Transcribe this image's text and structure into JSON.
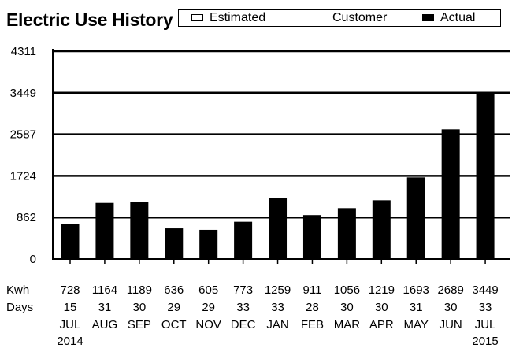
{
  "chart_data": {
    "type": "bar",
    "title": "Electric Use History",
    "legend": {
      "placement": "top-right",
      "items": [
        {
          "label": "Estimated",
          "style": "hollow"
        },
        {
          "label": "Customer",
          "style": "none"
        },
        {
          "label": "Actual",
          "style": "filled"
        }
      ]
    },
    "y_ticks": [
      "4311",
      "3449",
      "2587",
      "1724",
      "862",
      "0"
    ],
    "ylim": [
      0,
      4311
    ],
    "grid": true,
    "row_labels": {
      "kwh": "Kwh",
      "days": "Days"
    },
    "categories": [
      {
        "month": "JUL",
        "year": "2014"
      },
      {
        "month": "AUG",
        "year": ""
      },
      {
        "month": "SEP",
        "year": ""
      },
      {
        "month": "OCT",
        "year": ""
      },
      {
        "month": "NOV",
        "year": ""
      },
      {
        "month": "DEC",
        "year": ""
      },
      {
        "month": "JAN",
        "year": ""
      },
      {
        "month": "FEB",
        "year": ""
      },
      {
        "month": "MAR",
        "year": ""
      },
      {
        "month": "APR",
        "year": ""
      },
      {
        "month": "MAY",
        "year": ""
      },
      {
        "month": "JUN",
        "year": ""
      },
      {
        "month": "JUL",
        "year": "2015"
      }
    ],
    "series": [
      {
        "name": "Kwh",
        "values": [
          728,
          1164,
          1189,
          636,
          605,
          773,
          1259,
          911,
          1056,
          1219,
          1693,
          2689,
          3449
        ]
      },
      {
        "name": "Days",
        "values": [
          15,
          31,
          30,
          29,
          29,
          33,
          33,
          28,
          30,
          30,
          31,
          30,
          33
        ]
      }
    ],
    "colors": {
      "bar": "#000000",
      "grid": "#000000",
      "background": "#ffffff"
    }
  }
}
